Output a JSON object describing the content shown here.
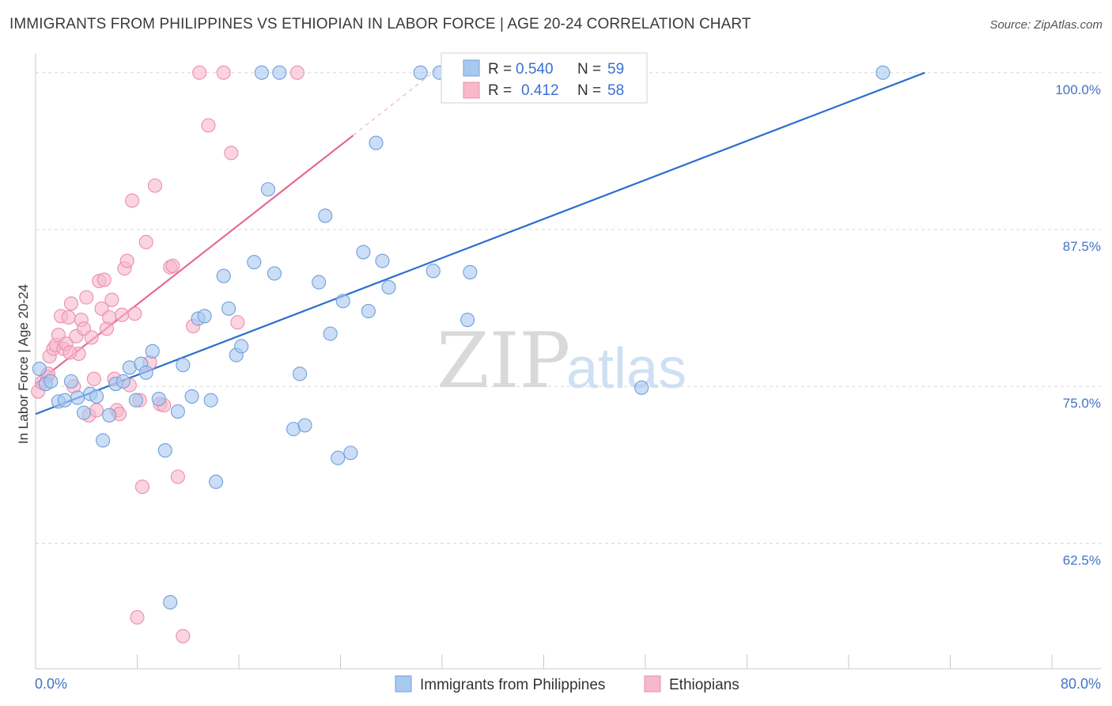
{
  "title": "IMMIGRANTS FROM PHILIPPINES VS ETHIOPIAN IN LABOR FORCE | AGE 20-24 CORRELATION CHART",
  "source": "Source: ZipAtlas.com",
  "watermark": {
    "zip": "ZIP",
    "atlas": "atlas"
  },
  "colors": {
    "blue_fill": "#a9c8f0",
    "blue_stroke": "#6f9fdc",
    "blue_line": "#2b6fce",
    "pink_fill": "#f6b8cb",
    "pink_stroke": "#ec8eaa",
    "pink_line": "#e56a92",
    "grid": "#d8d8d8",
    "axis_text": "#4472c4"
  },
  "legend_box": {
    "rows": [
      {
        "r_label": "R = ",
        "r_value": "0.540",
        "n_label": "N = ",
        "n_value": "59",
        "series": "blue"
      },
      {
        "r_label": "R = ",
        "r_value": "0.412",
        "n_label": "N = ",
        "n_value": "58",
        "series": "pink"
      }
    ]
  },
  "chart_data": {
    "type": "scatter",
    "title": "IMMIGRANTS FROM PHILIPPINES VS ETHIOPIAN IN LABOR FORCE | AGE 20-24 CORRELATION CHART",
    "xlabel": "",
    "ylabel": "In Labor Force | Age 20-24",
    "xlim": [
      0,
      80
    ],
    "ylim": [
      52.5,
      101.5
    ],
    "x_tick_labels": [
      "0.0%",
      "80.0%"
    ],
    "y_ticks": [
      62.5,
      75.0,
      87.5,
      100.0
    ],
    "y_tick_labels": [
      "62.5%",
      "75.0%",
      "87.5%",
      "100.0%"
    ],
    "grid": true,
    "legend_position": "bottom",
    "series": [
      {
        "name": "Immigrants from Philippines",
        "color": "blue",
        "R": 0.54,
        "N": 59,
        "trend": {
          "x1": 0,
          "y1": 72.8,
          "x2": 70.0,
          "y2": 100.0
        },
        "points": [
          [
            0.3,
            76.4
          ],
          [
            0.8,
            75.2
          ],
          [
            1.2,
            75.4
          ],
          [
            1.8,
            73.8
          ],
          [
            2.3,
            73.9
          ],
          [
            2.8,
            75.4
          ],
          [
            3.3,
            74.1
          ],
          [
            3.8,
            72.9
          ],
          [
            4.3,
            74.4
          ],
          [
            4.8,
            74.2
          ],
          [
            5.3,
            70.7
          ],
          [
            5.8,
            72.7
          ],
          [
            6.3,
            75.2
          ],
          [
            6.9,
            75.4
          ],
          [
            7.4,
            76.5
          ],
          [
            7.9,
            73.9
          ],
          [
            8.3,
            76.8
          ],
          [
            8.7,
            76.1
          ],
          [
            9.2,
            77.8
          ],
          [
            9.7,
            74.0
          ],
          [
            10.2,
            69.9
          ],
          [
            10.6,
            57.8
          ],
          [
            11.2,
            73.0
          ],
          [
            11.6,
            76.7
          ],
          [
            12.3,
            74.2
          ],
          [
            12.8,
            80.4
          ],
          [
            13.3,
            80.6
          ],
          [
            13.8,
            73.9
          ],
          [
            14.2,
            67.4
          ],
          [
            14.8,
            83.8
          ],
          [
            15.2,
            81.2
          ],
          [
            15.8,
            77.5
          ],
          [
            16.2,
            78.2
          ],
          [
            17.2,
            84.9
          ],
          [
            17.8,
            100.0
          ],
          [
            18.3,
            90.7
          ],
          [
            18.8,
            84.0
          ],
          [
            19.2,
            100.0
          ],
          [
            20.3,
            71.6
          ],
          [
            20.8,
            76.0
          ],
          [
            21.2,
            71.9
          ],
          [
            22.3,
            83.3
          ],
          [
            22.8,
            88.6
          ],
          [
            23.2,
            79.2
          ],
          [
            23.8,
            69.3
          ],
          [
            24.2,
            81.8
          ],
          [
            24.8,
            69.7
          ],
          [
            25.8,
            85.7
          ],
          [
            26.2,
            81.0
          ],
          [
            26.8,
            94.4
          ],
          [
            27.3,
            85.0
          ],
          [
            27.8,
            82.9
          ],
          [
            30.3,
            100.0
          ],
          [
            31.8,
            100.0
          ],
          [
            31.3,
            84.2
          ],
          [
            34.2,
            84.1
          ],
          [
            34.0,
            80.3
          ],
          [
            47.7,
            74.9
          ],
          [
            66.7,
            100.0
          ]
        ]
      },
      {
        "name": "Ethiopians",
        "color": "pink",
        "R": 0.412,
        "N": 58,
        "trend": {
          "x1": 0,
          "y1": 75.2,
          "x2": 25.0,
          "y2": 95.0
        },
        "trend_dashed": {
          "x1": 25.0,
          "y1": 95.0,
          "x2": 32.0,
          "y2": 100.6
        },
        "points": [
          [
            0.2,
            74.6
          ],
          [
            0.5,
            75.3
          ],
          [
            0.9,
            75.8
          ],
          [
            1.1,
            77.4
          ],
          [
            1.4,
            78.0
          ],
          [
            1.6,
            78.3
          ],
          [
            1.8,
            79.1
          ],
          [
            2.0,
            80.6
          ],
          [
            2.2,
            78.0
          ],
          [
            2.4,
            78.4
          ],
          [
            2.6,
            80.5
          ],
          [
            2.8,
            81.6
          ],
          [
            3.0,
            75.0
          ],
          [
            3.2,
            79.0
          ],
          [
            3.4,
            77.6
          ],
          [
            3.6,
            80.3
          ],
          [
            3.8,
            79.6
          ],
          [
            4.0,
            82.1
          ],
          [
            4.2,
            72.7
          ],
          [
            4.4,
            78.9
          ],
          [
            4.6,
            75.6
          ],
          [
            4.8,
            73.1
          ],
          [
            5.0,
            83.4
          ],
          [
            5.2,
            81.2
          ],
          [
            5.4,
            83.5
          ],
          [
            5.6,
            79.6
          ],
          [
            5.8,
            80.5
          ],
          [
            6.0,
            81.9
          ],
          [
            6.2,
            75.6
          ],
          [
            6.4,
            73.1
          ],
          [
            6.6,
            72.8
          ],
          [
            6.8,
            80.7
          ],
          [
            7.0,
            84.4
          ],
          [
            7.2,
            85.0
          ],
          [
            7.4,
            75.1
          ],
          [
            7.6,
            89.8
          ],
          [
            7.8,
            80.8
          ],
          [
            8.0,
            56.6
          ],
          [
            8.2,
            73.9
          ],
          [
            8.4,
            67.0
          ],
          [
            8.7,
            86.5
          ],
          [
            9.0,
            76.9
          ],
          [
            9.4,
            91.0
          ],
          [
            9.8,
            73.6
          ],
          [
            10.1,
            73.5
          ],
          [
            10.6,
            84.5
          ],
          [
            10.8,
            84.6
          ],
          [
            11.2,
            67.8
          ],
          [
            11.6,
            55.1
          ],
          [
            12.4,
            79.8
          ],
          [
            12.9,
            100.0
          ],
          [
            13.6,
            95.8
          ],
          [
            14.8,
            100.0
          ],
          [
            15.4,
            93.6
          ],
          [
            15.9,
            80.1
          ],
          [
            20.6,
            100.0
          ],
          [
            1.0,
            76.0
          ],
          [
            2.7,
            77.7
          ]
        ]
      }
    ]
  }
}
